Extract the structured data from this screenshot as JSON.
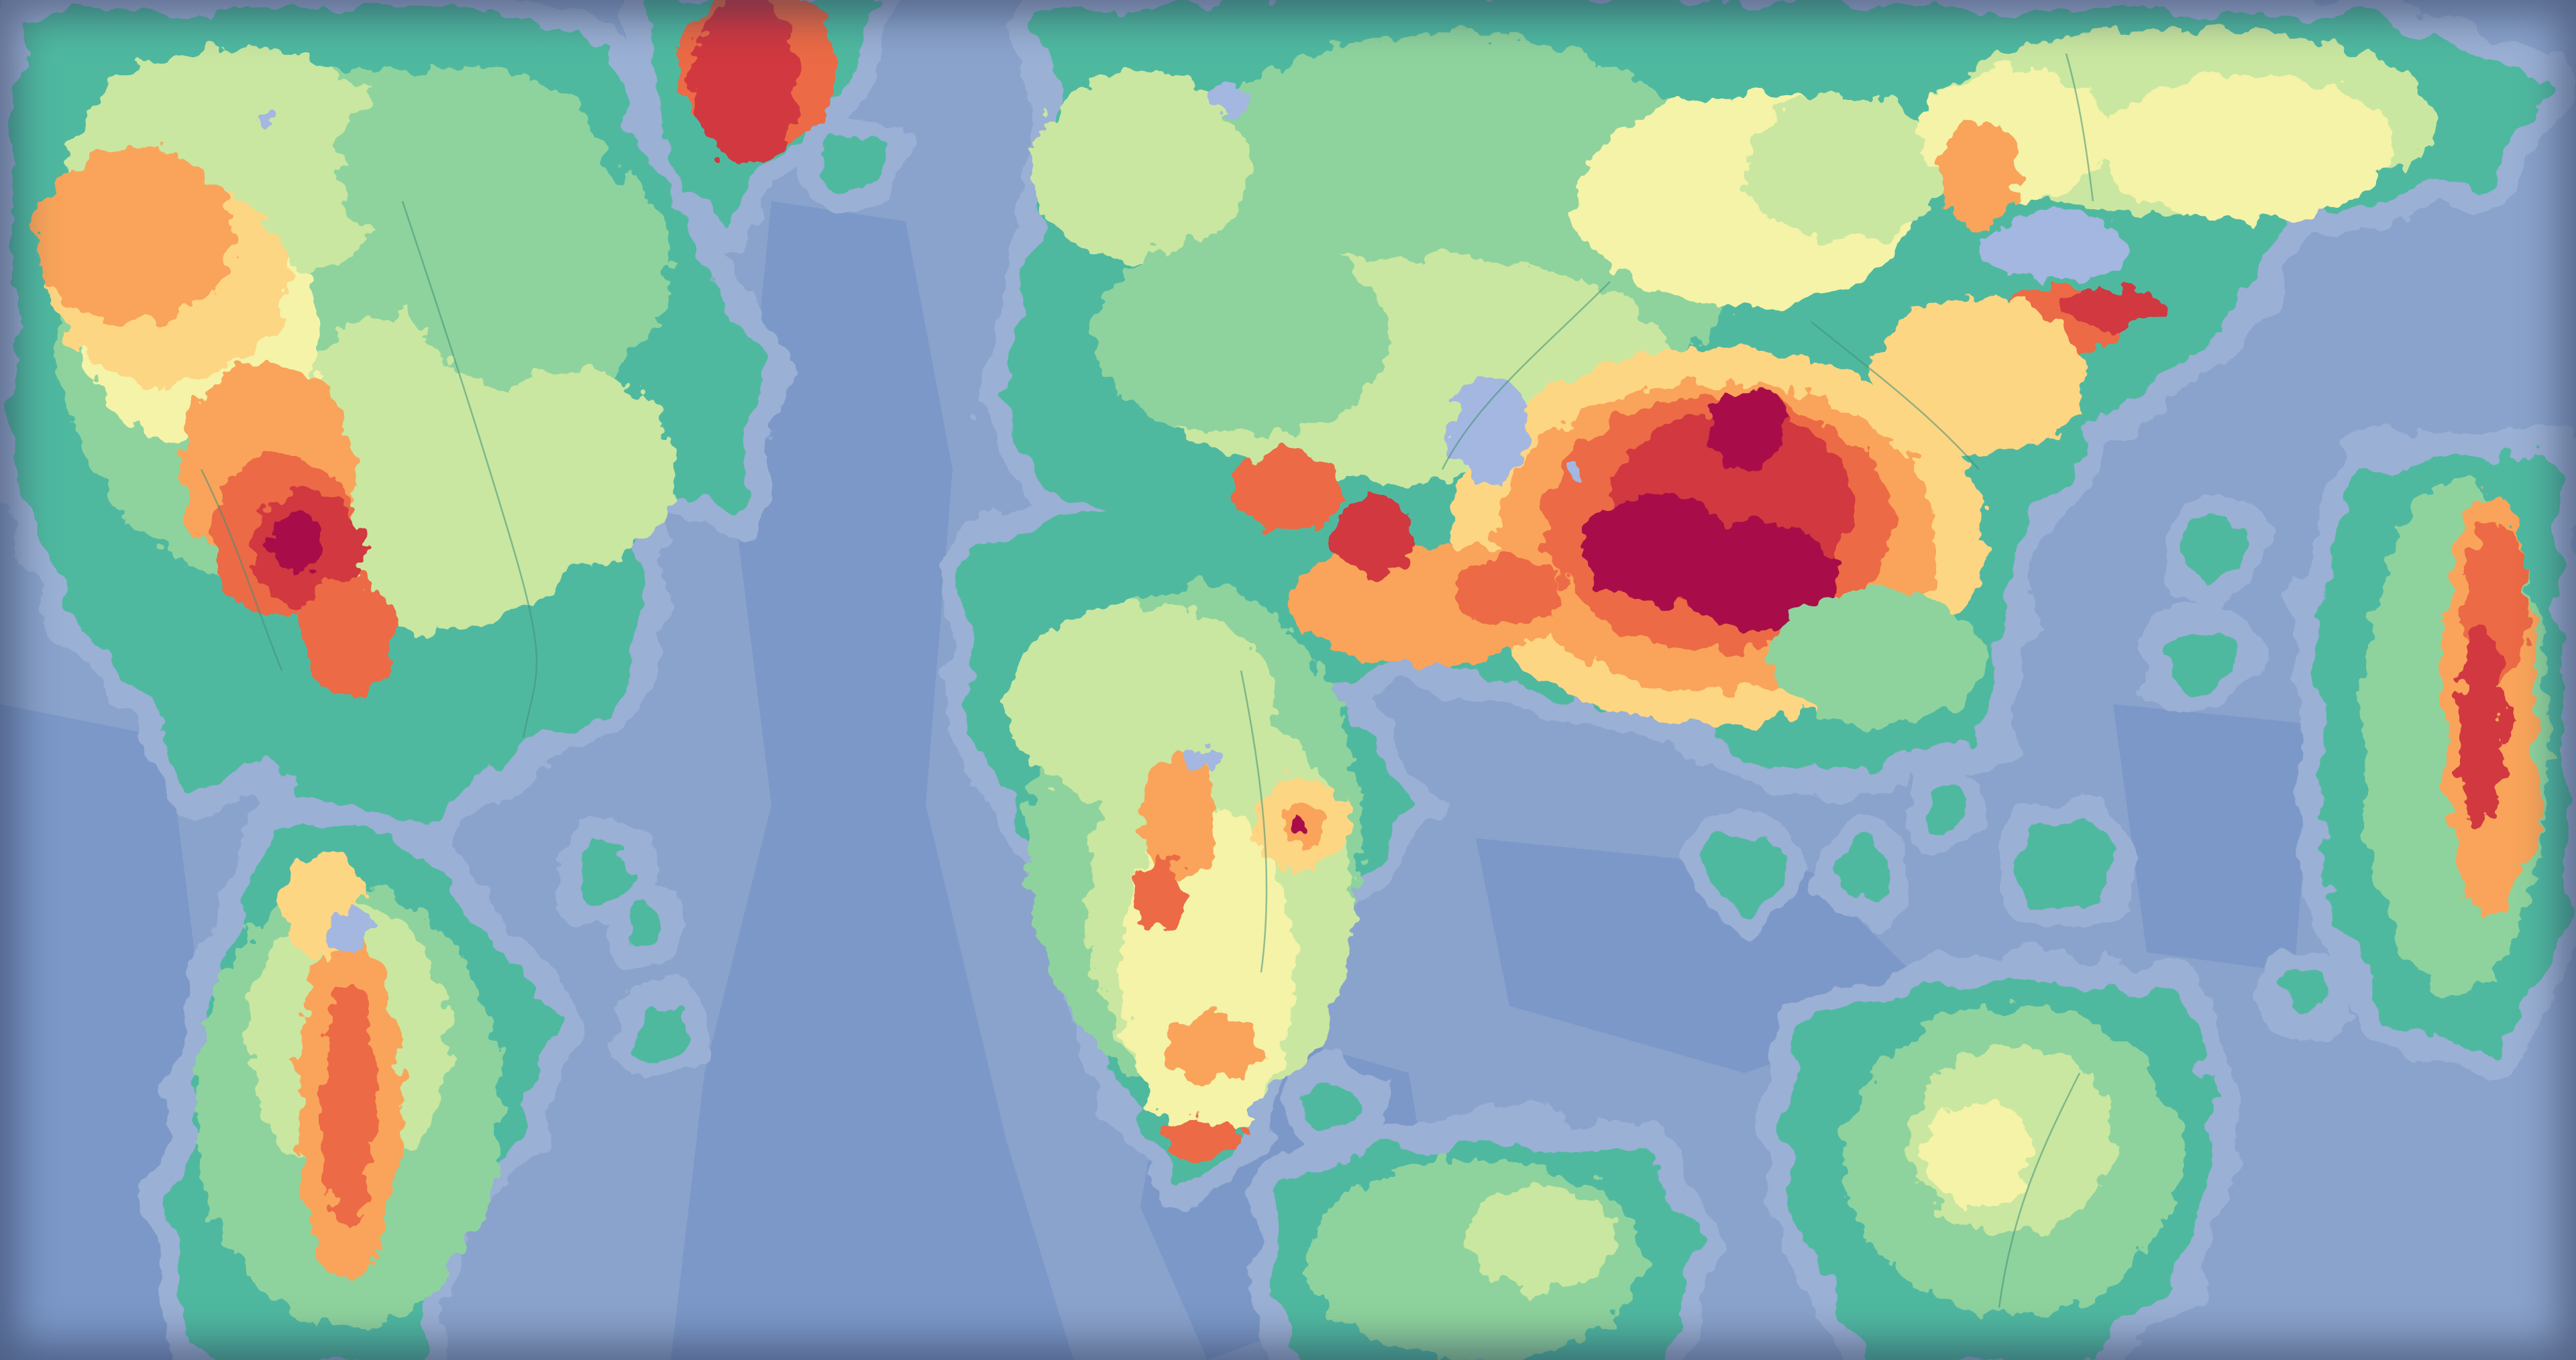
{
  "map": {
    "type": "fantasy-world-heightmap",
    "labels_visible": false,
    "palette": {
      "ocean_deep": "#6d8cbf",
      "ocean_mid": "#7b98c8",
      "ocean_shelf": "#8aa3cc",
      "ocean_coast": "#9ab0d4",
      "lake": "#a3b7e0",
      "lowland": "#4fb9a0",
      "plain": "#8ed39d",
      "hills": "#c9e7a0",
      "upland": "#f4f3a8",
      "highland": "#fdd683",
      "mountain": "#f9a45a",
      "high_mountain": "#ec6a45",
      "peak": "#d1383f",
      "summit": "#a8104a",
      "river": "#3f8f7a"
    },
    "landmasses": [
      {
        "name": "northwest-continent"
      },
      {
        "name": "southwest-continent"
      },
      {
        "name": "northern-glacier-island"
      },
      {
        "name": "central-north-continent"
      },
      {
        "name": "central-south-continent"
      },
      {
        "name": "eastern-north-continent"
      },
      {
        "name": "eastern-island-chain"
      },
      {
        "name": "southeast-continent"
      },
      {
        "name": "south-central-island"
      }
    ]
  }
}
